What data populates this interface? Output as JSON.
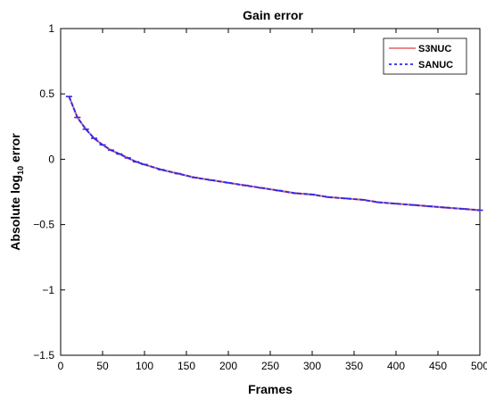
{
  "chart_data": {
    "type": "line",
    "title": "Gain error",
    "xlabel": "Frames",
    "ylabel_main": "Absolute log",
    "ylabel_sub": "10",
    "ylabel_tail": " error",
    "xlim": [
      0,
      500
    ],
    "ylim": [
      -1.5,
      1
    ],
    "xticks": [
      0,
      50,
      100,
      150,
      200,
      250,
      300,
      350,
      400,
      450,
      500
    ],
    "xtick_labels": [
      "0",
      "50",
      "100",
      "150",
      "200",
      "250",
      "300",
      "350",
      "400",
      "450",
      "500"
    ],
    "yticks": [
      1,
      0.5,
      0,
      -0.5,
      -1,
      -1.5
    ],
    "ytick_labels": [
      "1",
      "0.5",
      "0",
      "−0.5",
      "−1",
      "−1.5"
    ],
    "grid": false,
    "legend_position": "top-right",
    "series": [
      {
        "name": "S3NUC",
        "color": "#e8767a",
        "style": "solid",
        "x": [
          10,
          20,
          30,
          40,
          50,
          60,
          70,
          80,
          90,
          100,
          120,
          140,
          160,
          180,
          200,
          220,
          240,
          260,
          280,
          300,
          320,
          340,
          360,
          380,
          400,
          420,
          440,
          460,
          480,
          500
        ],
        "y": [
          0.48,
          0.32,
          0.23,
          0.16,
          0.11,
          0.07,
          0.04,
          0.01,
          -0.02,
          -0.04,
          -0.08,
          -0.11,
          -0.14,
          -0.16,
          -0.18,
          -0.2,
          -0.22,
          -0.24,
          -0.26,
          -0.27,
          -0.29,
          -0.3,
          -0.31,
          -0.33,
          -0.34,
          -0.35,
          -0.36,
          -0.37,
          -0.38,
          -0.39
        ]
      },
      {
        "name": "SANUC",
        "color": "#2b2bee",
        "style": "dashed",
        "x": [
          10,
          20,
          30,
          40,
          50,
          60,
          70,
          80,
          90,
          100,
          120,
          140,
          160,
          180,
          200,
          220,
          240,
          260,
          280,
          300,
          320,
          340,
          360,
          380,
          400,
          420,
          440,
          460,
          480,
          500
        ],
        "y": [
          0.48,
          0.32,
          0.23,
          0.16,
          0.11,
          0.07,
          0.04,
          0.01,
          -0.02,
          -0.04,
          -0.08,
          -0.11,
          -0.14,
          -0.16,
          -0.18,
          -0.2,
          -0.22,
          -0.24,
          -0.26,
          -0.27,
          -0.29,
          -0.3,
          -0.31,
          -0.33,
          -0.34,
          -0.35,
          -0.36,
          -0.37,
          -0.38,
          -0.39
        ]
      }
    ]
  }
}
